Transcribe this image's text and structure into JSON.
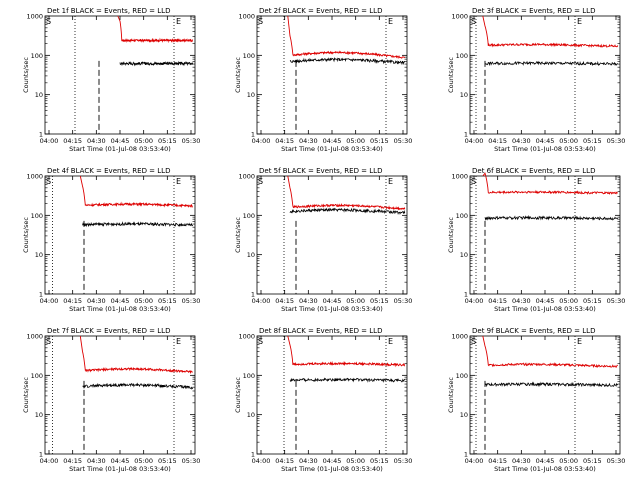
{
  "chart_data": {
    "type": "line",
    "ylabel": "Counts/sec",
    "xlabel": "Start Time (01-Jul-08 03:53:40)",
    "yscale": "log",
    "ylim": [
      1,
      1000
    ],
    "ytick_labels": [
      "1",
      "10",
      "100",
      "1000"
    ],
    "xtick_labels": [
      "04:00",
      "04:15",
      "04:30",
      "04:45",
      "05:00",
      "05:15",
      "05:30"
    ],
    "xtick_labels_alt": [
      "04:00",
      "04:15",
      "04:30",
      "04:45",
      "05:00",
      "05:15",
      "05:30"
    ],
    "marker_start": "S",
    "marker_end": "E",
    "colors": {
      "events": "#000000",
      "lld": "#dd0000"
    },
    "series_names": [
      "Events",
      "LLD"
    ],
    "panels": [
      {
        "title": "Det 1f BLACK = Events, RED = LLD",
        "xticks": "alt",
        "lld_level": 240,
        "events_level": 62,
        "drop_at": 0.5,
        "dash_line": 0.36,
        "dot_s": 0.2,
        "dot_e": 0.86,
        "lld_bump": 0,
        "events_bump": 0
      },
      {
        "title": "Det 2f BLACK = Events, RED = LLD",
        "xticks": "main",
        "lld_level": 100,
        "events_level": 70,
        "drop_at": 0.22,
        "dash_line": 0.26,
        "dot_s": 0.18,
        "dot_e": 0.86,
        "lld_bump": 0.18,
        "events_bump": 0.12
      },
      {
        "title": "Det 3f BLACK = Events, RED = LLD",
        "xticks": "alt",
        "lld_level": 180,
        "events_level": 62,
        "drop_at": 0.1,
        "dash_line": 0.1,
        "dot_s": 0.04,
        "dot_e": 0.7,
        "lld_bump": 0.05,
        "events_bump": 0.02
      },
      {
        "title": "Det 4f BLACK = Events, RED = LLD",
        "xticks": "alt",
        "lld_level": 180,
        "events_level": 58,
        "drop_at": 0.25,
        "dash_line": 0.26,
        "dot_s": 0.05,
        "dot_e": 0.86,
        "lld_bump": 0.07,
        "events_bump": 0.04
      },
      {
        "title": "Det 5f BLACK = Events, RED = LLD",
        "xticks": "main",
        "lld_level": 160,
        "events_level": 125,
        "drop_at": 0.22,
        "dash_line": 0.26,
        "dot_s": 0.18,
        "dot_e": 0.86,
        "lld_bump": 0.12,
        "events_bump": 0.1
      },
      {
        "title": "Det 6f BLACK = Events, RED = LLD",
        "xticks": "alt",
        "lld_level": 380,
        "events_level": 85,
        "drop_at": 0.1,
        "dash_line": 0.1,
        "dot_s": 0.04,
        "dot_e": 0.7,
        "lld_bump": 0.03,
        "events_bump": 0.02
      },
      {
        "title": "Det 7f BLACK = Events, RED = LLD",
        "xticks": "alt",
        "lld_level": 130,
        "events_level": 52,
        "drop_at": 0.25,
        "dash_line": 0.26,
        "dot_s": 0.05,
        "dot_e": 0.86,
        "lld_bump": 0.12,
        "events_bump": 0.1
      },
      {
        "title": "Det 8f BLACK = Events, RED = LLD",
        "xticks": "main",
        "lld_level": 190,
        "events_level": 75,
        "drop_at": 0.22,
        "dash_line": 0.26,
        "dot_s": 0.18,
        "dot_e": 0.86,
        "lld_bump": 0.05,
        "events_bump": 0.04
      },
      {
        "title": "Det 9f BLACK = Events, RED = LLD",
        "xticks": "alt",
        "lld_level": 180,
        "events_level": 58,
        "drop_at": 0.1,
        "dash_line": 0.1,
        "dot_s": 0.04,
        "dot_e": 0.7,
        "lld_bump": 0.06,
        "events_bump": 0.03
      }
    ]
  }
}
